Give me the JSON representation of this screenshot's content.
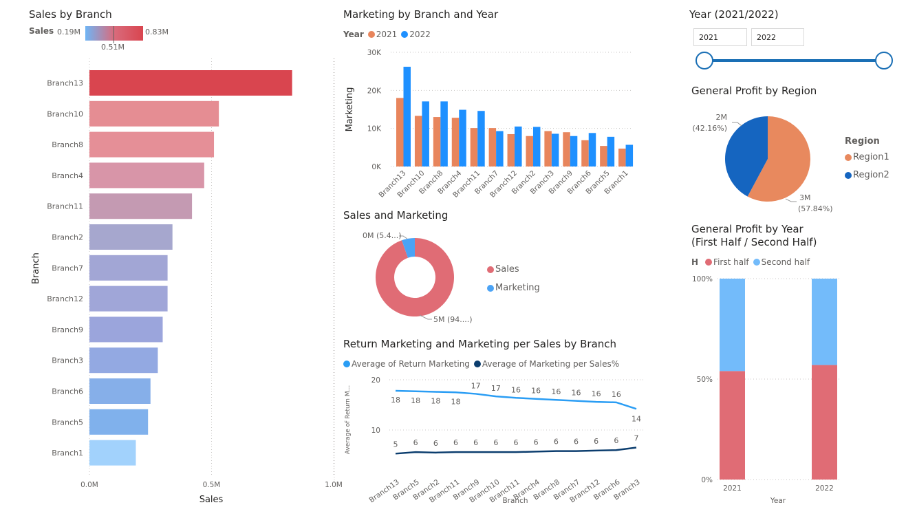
{
  "sales_panel": {
    "title": "Sales by Branch",
    "gradient_label": "Sales",
    "gradient_min": "0.19M",
    "gradient_mid": "0.51M",
    "gradient_max": "0.83M"
  },
  "marketing_panel": {
    "title": "Marketing by Branch and Year",
    "legend_title": "Year"
  },
  "donut_panel": {
    "title": "Sales and Marketing",
    "label_small": "0M (5.4...)",
    "label_large": "5M (94....)"
  },
  "return_panel": {
    "title": "Return Marketing and Marketing per Sales by Branch"
  },
  "year_slicer": {
    "title": "Year (2021/2022)",
    "start": "2021",
    "end": "2022",
    "range": [
      2021,
      2022
    ]
  },
  "region_panel": {
    "title": "General Profit by Region",
    "legend_title": "Region",
    "label_r2": "2M",
    "label_r2_pct": "(42.16%)",
    "label_r1": "3M",
    "label_r1_pct": "(57.84%)"
  },
  "half_panel": {
    "title_line1": "General Profit by Year",
    "title_line2": "(First Half / Second Half)",
    "legend_title": "H"
  },
  "colors": {
    "c2021": "#E8855C",
    "c2022": "#1E90FF",
    "sales": "#E06C75",
    "marketing": "#4BA3F5",
    "return": "#2A9DF4",
    "mps": "#0B3D6E",
    "region1": "#E8895E",
    "region2": "#1565C0",
    "first_half": "#E06C75",
    "second_half": "#73BBFA"
  },
  "chart_data": [
    {
      "type": "bar",
      "orientation": "horizontal",
      "title": "Sales by Branch",
      "xlabel": "Sales",
      "ylabel": "Branch",
      "categories": [
        "Branch13",
        "Branch10",
        "Branch8",
        "Branch4",
        "Branch11",
        "Branch2",
        "Branch7",
        "Branch12",
        "Branch9",
        "Branch3",
        "Branch6",
        "Branch5",
        "Branch1"
      ],
      "values": [
        0.83,
        0.53,
        0.51,
        0.47,
        0.42,
        0.34,
        0.32,
        0.32,
        0.3,
        0.28,
        0.25,
        0.24,
        0.19
      ],
      "xlim": [
        0,
        1.0
      ],
      "xticks": [
        "0.0M",
        "0.5M",
        "1.0M"
      ],
      "bar_colors": [
        "#D9454F",
        "#E58D93",
        "#E58F97",
        "#D895A8",
        "#C49AB2",
        "#A6A7CE",
        "#A2A6D5",
        "#A0A6D8",
        "#9BA5DC",
        "#93A9E2",
        "#86AFE9",
        "#80B1EC",
        "#A2D2FC"
      ]
    },
    {
      "type": "bar",
      "title": "Marketing by Branch and Year",
      "xlabel": "",
      "ylabel": "Marketing",
      "categories": [
        "Branch13",
        "Branch10",
        "Branch8",
        "Branch4",
        "Branch11",
        "Branch7",
        "Branch12",
        "Branch2",
        "Branch3",
        "Branch9",
        "Branch6",
        "Branch5",
        "Branch1"
      ],
      "series": [
        {
          "name": "2021",
          "values": [
            18000,
            13300,
            13000,
            12800,
            10100,
            10100,
            8500,
            8000,
            9300,
            9000,
            6900,
            5400,
            4700
          ]
        },
        {
          "name": "2022",
          "values": [
            26200,
            17100,
            17100,
            14900,
            14600,
            9300,
            10500,
            10400,
            8600,
            8000,
            8800,
            7800,
            5700
          ]
        }
      ],
      "ylim": [
        0,
        30000
      ],
      "yticks": [
        "0K",
        "10K",
        "20K",
        "30K"
      ]
    },
    {
      "type": "pie",
      "subtype": "donut",
      "title": "Sales and Marketing",
      "categories": [
        "Sales",
        "Marketing"
      ],
      "values": [
        94.6,
        5.4
      ]
    },
    {
      "type": "line",
      "title": "Return Marketing and Marketing per Sales by Branch",
      "xlabel": "Branch",
      "ylabel": "Average of Return M...",
      "categories": [
        "Branch13",
        "Branch5",
        "Branch2",
        "Branch11",
        "Branch9",
        "Branch10",
        "Branch11",
        "Branch4",
        "Branch8",
        "Branch7",
        "Branch12",
        "Branch6",
        "Branch3"
      ],
      "series": [
        {
          "name": "Average of Return Marketing",
          "values": [
            18,
            18,
            18,
            18,
            17,
            17,
            16,
            16,
            16,
            16,
            16,
            16,
            14
          ],
          "plot": [
            17.8,
            17.7,
            17.6,
            17.5,
            17.2,
            16.7,
            16.4,
            16.2,
            16.0,
            15.8,
            15.6,
            15.5,
            14.2
          ]
        },
        {
          "name": "Average of Marketing per Sales%",
          "values": [
            5,
            6,
            6,
            6,
            6,
            6,
            6,
            6,
            6,
            6,
            6,
            6,
            7
          ],
          "plot": [
            5.3,
            5.6,
            5.5,
            5.6,
            5.6,
            5.6,
            5.6,
            5.7,
            5.8,
            5.8,
            5.9,
            6.0,
            6.5
          ]
        }
      ],
      "ylim": [
        0,
        20
      ],
      "yticks": [
        "10",
        "20"
      ]
    },
    {
      "type": "pie",
      "title": "General Profit by Region",
      "categories": [
        "Region1",
        "Region2"
      ],
      "values": [
        57.84,
        42.16
      ],
      "labels": [
        "3M",
        "2M"
      ]
    },
    {
      "type": "bar",
      "stacked": "100%",
      "title": "General Profit by Year (First Half / Second Half)",
      "xlabel": "Year",
      "categories": [
        "2021",
        "2022"
      ],
      "series": [
        {
          "name": "First half",
          "values": [
            54,
            57
          ]
        },
        {
          "name": "Second half",
          "values": [
            46,
            43
          ]
        }
      ],
      "ylim": [
        0,
        100
      ],
      "yticks": [
        "0%",
        "50%",
        "100%"
      ]
    }
  ]
}
